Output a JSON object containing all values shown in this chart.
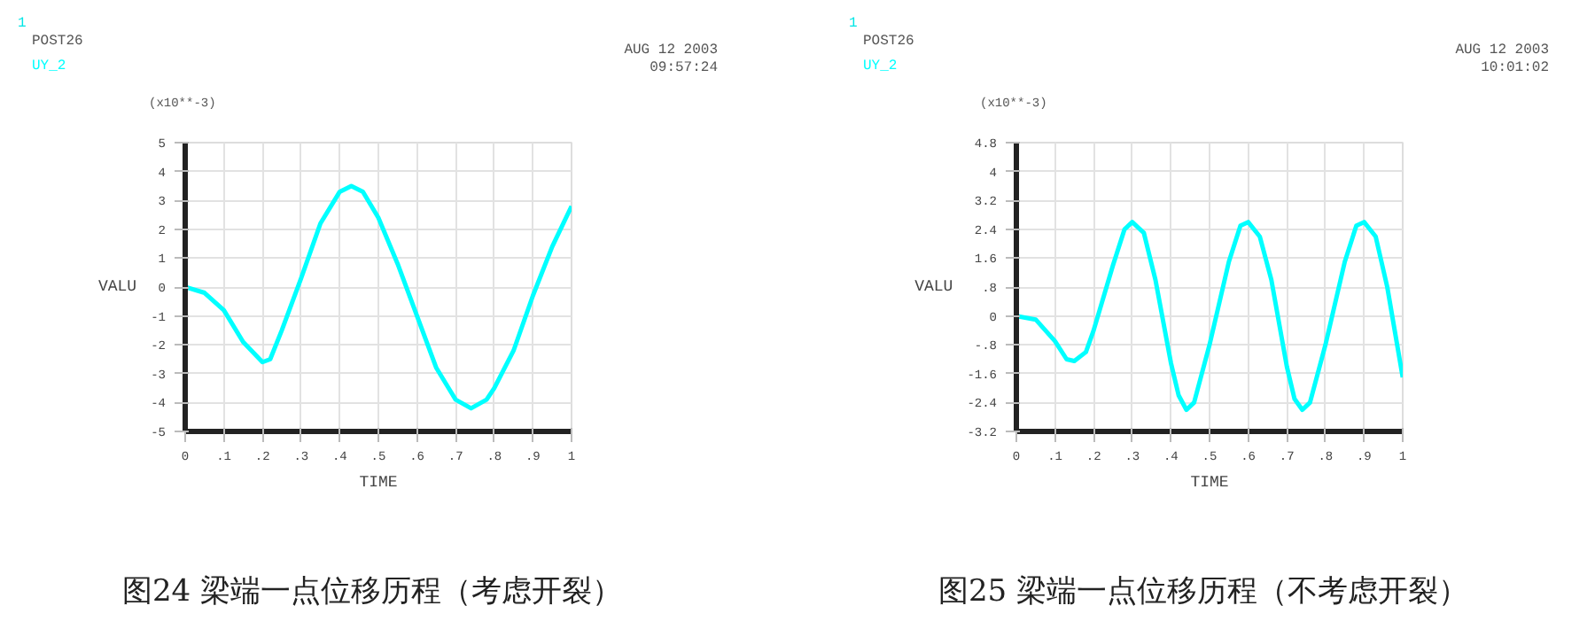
{
  "chart_data": [
    {
      "type": "line",
      "title": "图24 梁端一点位移历程（考虑开裂）",
      "xlabel": "TIME",
      "ylabel": "VALU",
      "annotations": [
        "1",
        "POST26",
        "AUG 12 2003",
        "09:57:24",
        "(x10**-3)"
      ],
      "grid": true,
      "line_style": "solid",
      "x": [
        0,
        0.05,
        0.1,
        0.15,
        0.2,
        0.22,
        0.25,
        0.3,
        0.35,
        0.4,
        0.43,
        0.46,
        0.5,
        0.55,
        0.6,
        0.65,
        0.7,
        0.74,
        0.78,
        0.8,
        0.85,
        0.9,
        0.95,
        1.0
      ],
      "series": [
        {
          "name": "UY_2",
          "color": "#00ffff",
          "values": [
            0,
            -0.2,
            -0.8,
            -1.9,
            -2.6,
            -2.5,
            -1.5,
            0.3,
            2.2,
            3.3,
            3.5,
            3.3,
            2.4,
            0.8,
            -1.0,
            -2.8,
            -3.9,
            -4.2,
            -3.9,
            -3.5,
            -2.2,
            -0.3,
            1.4,
            2.8
          ]
        }
      ],
      "xlim": [
        0,
        1
      ],
      "ylim": [
        -5,
        5
      ],
      "xticks": [
        0,
        {
          "value": 0.1,
          "label": ".1"
        },
        {
          "value": 0.2,
          "label": ".2"
        },
        {
          "value": 0.3,
          "label": ".3"
        },
        {
          "value": 0.4,
          "label": ".4"
        },
        {
          "value": 0.5,
          "label": ".5"
        },
        {
          "value": 0.6,
          "label": ".6"
        },
        {
          "value": 0.7,
          "label": ".7"
        },
        {
          "value": 0.8,
          "label": ".8"
        },
        {
          "value": 0.9,
          "label": ".9"
        },
        1
      ],
      "yticks": [
        -5,
        -4,
        -3,
        -2,
        -1,
        0,
        1,
        2,
        3,
        4,
        5
      ]
    },
    {
      "type": "line",
      "title": "图25 梁端一点位移历程（不考虑开裂）",
      "xlabel": "TIME",
      "ylabel": "VALU",
      "annotations": [
        "1",
        "POST26",
        "AUG 12 2003",
        "10:01:02",
        "(x10**-3)"
      ],
      "grid": true,
      "line_style": "solid",
      "x": [
        0,
        0.05,
        0.1,
        0.13,
        0.15,
        0.18,
        0.2,
        0.25,
        0.28,
        0.3,
        0.33,
        0.36,
        0.4,
        0.42,
        0.44,
        0.46,
        0.5,
        0.55,
        0.58,
        0.6,
        0.63,
        0.66,
        0.7,
        0.72,
        0.74,
        0.76,
        0.8,
        0.85,
        0.88,
        0.9,
        0.93,
        0.96,
        1.0
      ],
      "series": [
        {
          "name": "UY_2",
          "color": "#00ffff",
          "values": [
            0,
            -0.1,
            -0.7,
            -1.2,
            -1.25,
            -1.0,
            -0.4,
            1.4,
            2.4,
            2.6,
            2.3,
            1.0,
            -1.3,
            -2.2,
            -2.6,
            -2.4,
            -0.8,
            1.5,
            2.5,
            2.6,
            2.2,
            1.0,
            -1.4,
            -2.3,
            -2.6,
            -2.4,
            -0.8,
            1.5,
            2.5,
            2.6,
            2.2,
            0.8,
            -1.7
          ]
        }
      ],
      "xlim": [
        0,
        1
      ],
      "ylim": [
        -3.2,
        4.8
      ],
      "xticks": [
        0,
        {
          "value": 0.1,
          "label": ".1"
        },
        {
          "value": 0.2,
          "label": ".2"
        },
        {
          "value": 0.3,
          "label": ".3"
        },
        {
          "value": 0.4,
          "label": ".4"
        },
        {
          "value": 0.5,
          "label": ".5"
        },
        {
          "value": 0.6,
          "label": ".6"
        },
        {
          "value": 0.7,
          "label": ".7"
        },
        {
          "value": 0.8,
          "label": ".8"
        },
        {
          "value": 0.9,
          "label": ".9"
        },
        1
      ],
      "yticks": [
        {
          "value": -3.2,
          "label": "-3.2"
        },
        {
          "value": -2.4,
          "label": "-2.4"
        },
        {
          "value": -1.6,
          "label": "-1.6"
        },
        {
          "value": -0.8,
          "label": "-.8"
        },
        0,
        {
          "value": 0.8,
          "label": ".8"
        },
        {
          "value": 1.6,
          "label": "1.6"
        },
        {
          "value": 2.4,
          "label": "2.4"
        },
        {
          "value": 3.2,
          "label": "3.2"
        },
        4,
        {
          "value": 4.8,
          "label": "4.8"
        }
      ]
    }
  ]
}
